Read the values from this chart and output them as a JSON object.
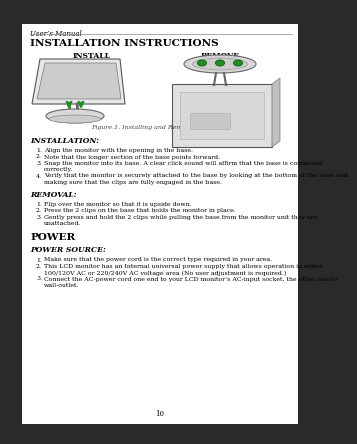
{
  "bg_color": "#ffffff",
  "page_bg": "#f0f0f0",
  "border_color": "#000000",
  "header_text": "User’s Manual",
  "title": "INSTALLATION INSTRUCTIONS",
  "install_label": "INSTALL",
  "remove_label": "REMOVE",
  "figure_caption": "Figure.1. Installing and Removing the Base",
  "installation_heading": "INSTALLATION:",
  "installation_items": [
    "Align the monitor with the opening in the base.",
    "Note that the longer section of the base points forward.",
    "Snap the monitor into its base. A clear click sound will affirm that the base is connected\ncorrectly.",
    "Verify that the monitor is securely attached to the base by looking at the bottom of the base and\nmaking sure that the clips are fully engaged in the base."
  ],
  "removal_heading": "REMOVAL:",
  "removal_items": [
    "Flip over the monitor so that it is upside down.",
    "Press the 2 clips on the base that holds the monitor in place.",
    "Gently press and hold the 2 clips while pulling the base from the monitor unit they are\nunattached."
  ],
  "power_heading": "POWER",
  "power_source_heading": "POWER SOURCE:",
  "power_source_items": [
    "Make sure that the power cord is the correct type required in your area.",
    "This LCD monitor has an Internal universal power supply that allows operation in either\n100/120V AC or 220/240V AC voltage area (No user adjustment is required.)",
    "Connect the AC-power cord one end to your LCD monitor’s AC-input socket, the other end to\nwall-outlet."
  ],
  "page_number": "10",
  "arrow_color": "#228B22",
  "green_color": "#228B22",
  "dark_color": "#1a1a1a"
}
